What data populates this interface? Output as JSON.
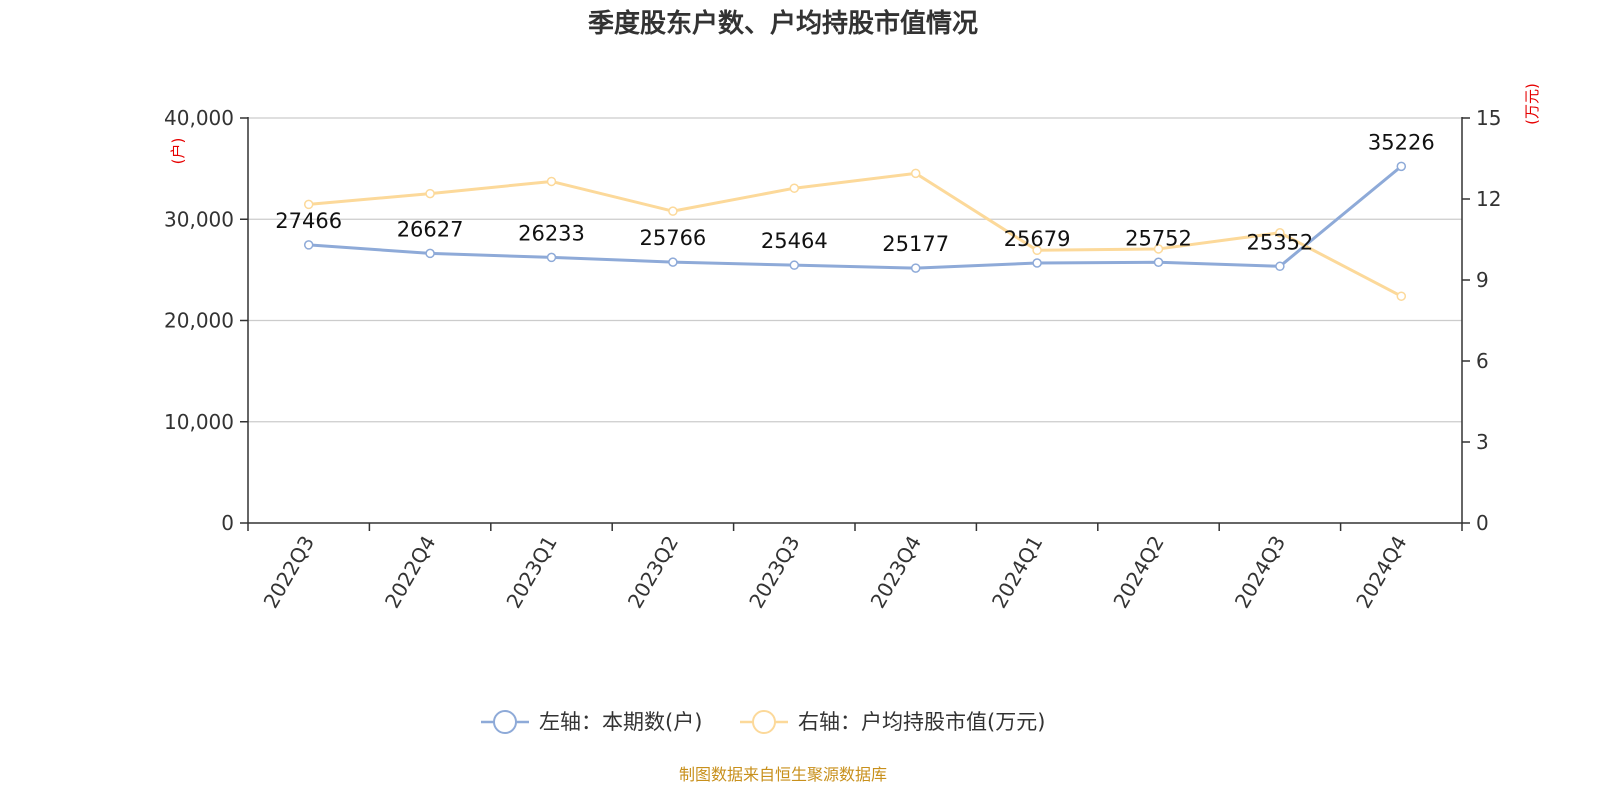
{
  "chart_data": {
    "type": "line",
    "title": "季度股东户数、户均持股市值情况",
    "categories": [
      "2022Q3",
      "2022Q4",
      "2023Q1",
      "2023Q2",
      "2023Q3",
      "2023Q4",
      "2024Q1",
      "2024Q2",
      "2024Q3",
      "2024Q4"
    ],
    "y_left": {
      "unit_label": "(户)",
      "range": [
        0,
        40000
      ],
      "ticks": [
        0,
        10000,
        20000,
        30000,
        40000
      ],
      "tick_labels": [
        "0",
        "10,000",
        "20,000",
        "30,000",
        "40,000"
      ]
    },
    "y_right": {
      "unit_label": "(万元)",
      "range": [
        0,
        15
      ],
      "ticks": [
        0,
        3,
        6,
        9,
        12,
        15
      ],
      "tick_labels": [
        "0",
        "3",
        "6",
        "9",
        "12",
        "15"
      ]
    },
    "grid": true,
    "legend_position": "bottom",
    "series": [
      {
        "name": "左轴：本期数(户)",
        "axis": "left",
        "color": "#8eaad8",
        "values": [
          27466,
          26627,
          26233,
          25766,
          25464,
          25177,
          25679,
          25752,
          25352,
          35226
        ],
        "labels": [
          "27466",
          "26627",
          "26233",
          "25766",
          "25464",
          "25177",
          "25679",
          "25752",
          "25352",
          "35226"
        ]
      },
      {
        "name": "右轴：户均持股市值(万元)",
        "axis": "right",
        "color": "#fcd99a",
        "values": [
          11.8,
          12.2,
          12.65,
          11.55,
          12.4,
          12.95,
          10.1,
          10.15,
          10.75,
          8.4
        ]
      }
    ]
  },
  "source": "制图数据来自恒生聚源数据库"
}
